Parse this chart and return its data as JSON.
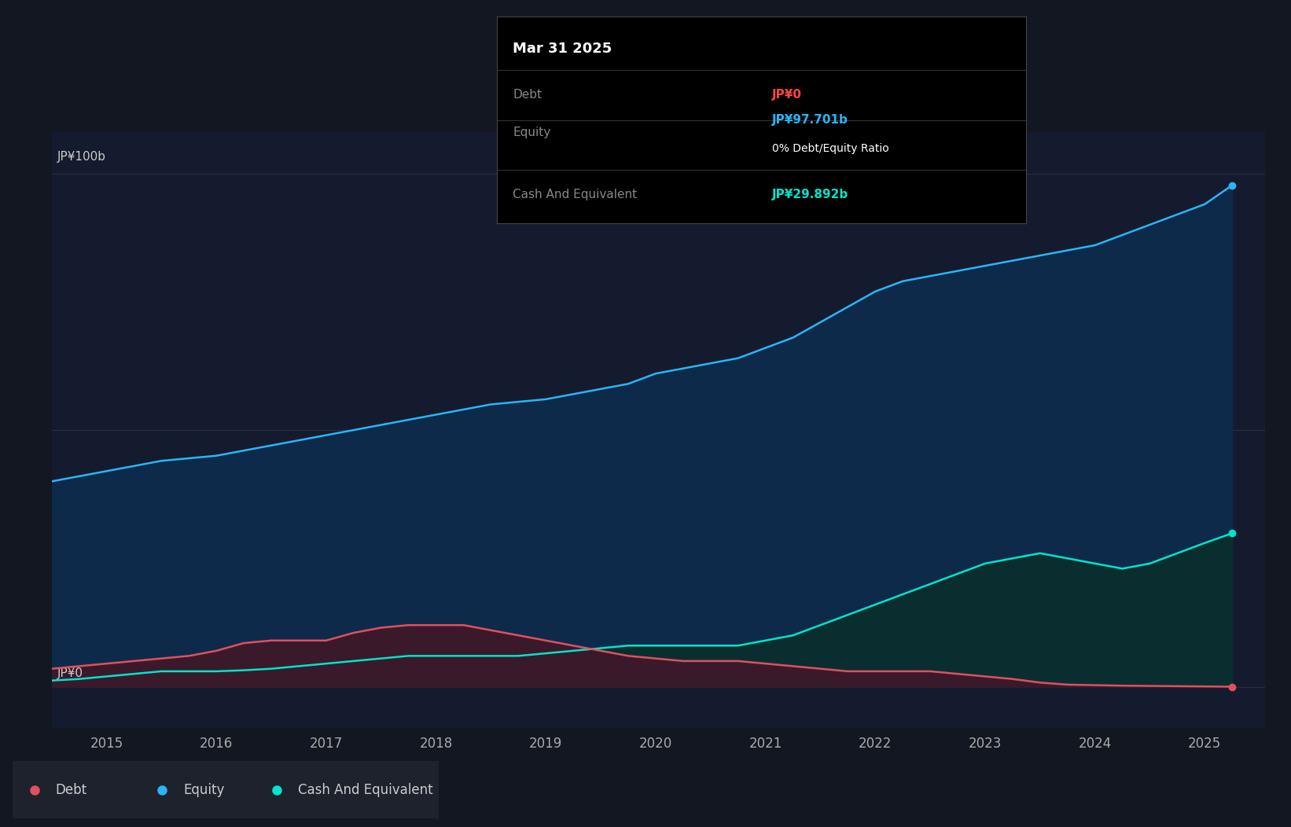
{
  "background_color": "#131722",
  "plot_bg_color": "#151b2e",
  "ylabel": "JP¥100b",
  "y0_label": "JP¥0",
  "x_ticks": [
    2015,
    2016,
    2017,
    2018,
    2019,
    2020,
    2021,
    2022,
    2023,
    2024,
    2025
  ],
  "xlim": [
    2014.5,
    2025.55
  ],
  "ylim": [
    -8,
    108
  ],
  "grid_color": "#2a2e39",
  "tooltip_bg": "#000000",
  "tooltip_border": "#444444",
  "tooltip_title": "Mar 31 2025",
  "tooltip_debt_label": "Debt",
  "tooltip_debt_value": "JP¥0",
  "tooltip_debt_color": "#ff4444",
  "tooltip_equity_label": "Equity",
  "tooltip_equity_value": "JP¥97.701b",
  "tooltip_equity_color": "#29b6f6",
  "tooltip_ratio": "0% Debt/Equity Ratio",
  "tooltip_ratio_color": "#ffffff",
  "tooltip_cash_label": "Cash And Equivalent",
  "tooltip_cash_value": "JP¥29.892b",
  "tooltip_cash_color": "#00e5cc",
  "equity_color": "#29b6f6",
  "equity_fill_color": "#0d2a4a",
  "debt_color": "#e05060",
  "debt_fill_color": "#3a1a2a",
  "cash_color": "#00e5cc",
  "cash_fill_color": "#0a2e30",
  "legend_bg": "#1e222d",
  "legend_text_color": "#cccccc",
  "years": [
    2014.25,
    2014.5,
    2014.75,
    2015.0,
    2015.25,
    2015.5,
    2015.75,
    2016.0,
    2016.25,
    2016.5,
    2016.75,
    2017.0,
    2017.25,
    2017.5,
    2017.75,
    2018.0,
    2018.25,
    2018.5,
    2018.75,
    2019.0,
    2019.25,
    2019.5,
    2019.75,
    2020.0,
    2020.25,
    2020.5,
    2020.75,
    2021.0,
    2021.25,
    2021.5,
    2021.75,
    2022.0,
    2022.25,
    2022.5,
    2022.75,
    2023.0,
    2023.25,
    2023.5,
    2023.75,
    2024.0,
    2024.25,
    2024.5,
    2024.75,
    2025.0,
    2025.25
  ],
  "equity": [
    38.0,
    40.0,
    41.0,
    42.0,
    43.0,
    44.0,
    44.5,
    45.0,
    46.0,
    47.0,
    48.0,
    49.0,
    50.0,
    51.0,
    52.0,
    53.0,
    54.0,
    55.0,
    55.5,
    56.0,
    57.0,
    58.0,
    59.0,
    61.0,
    62.0,
    63.0,
    64.0,
    66.0,
    68.0,
    71.0,
    74.0,
    77.0,
    79.0,
    80.0,
    81.0,
    82.0,
    83.0,
    84.0,
    85.0,
    86.0,
    88.0,
    90.0,
    92.0,
    94.0,
    97.7
  ],
  "debt": [
    3.0,
    3.5,
    4.0,
    4.5,
    5.0,
    5.5,
    6.0,
    7.0,
    8.5,
    9.0,
    9.0,
    9.0,
    10.5,
    11.5,
    12.0,
    12.0,
    12.0,
    11.0,
    10.0,
    9.0,
    8.0,
    7.0,
    6.0,
    5.5,
    5.0,
    5.0,
    5.0,
    4.5,
    4.0,
    3.5,
    3.0,
    3.0,
    3.0,
    3.0,
    2.5,
    2.0,
    1.5,
    0.8,
    0.4,
    0.3,
    0.2,
    0.15,
    0.1,
    0.05,
    0.0
  ],
  "cash": [
    1.0,
    1.2,
    1.5,
    2.0,
    2.5,
    3.0,
    3.0,
    3.0,
    3.2,
    3.5,
    4.0,
    4.5,
    5.0,
    5.5,
    6.0,
    6.0,
    6.0,
    6.0,
    6.0,
    6.5,
    7.0,
    7.5,
    8.0,
    8.0,
    8.0,
    8.0,
    8.0,
    9.0,
    10.0,
    12.0,
    14.0,
    16.0,
    18.0,
    20.0,
    22.0,
    24.0,
    25.0,
    26.0,
    25.0,
    24.0,
    23.0,
    24.0,
    26.0,
    28.0,
    29.892
  ]
}
